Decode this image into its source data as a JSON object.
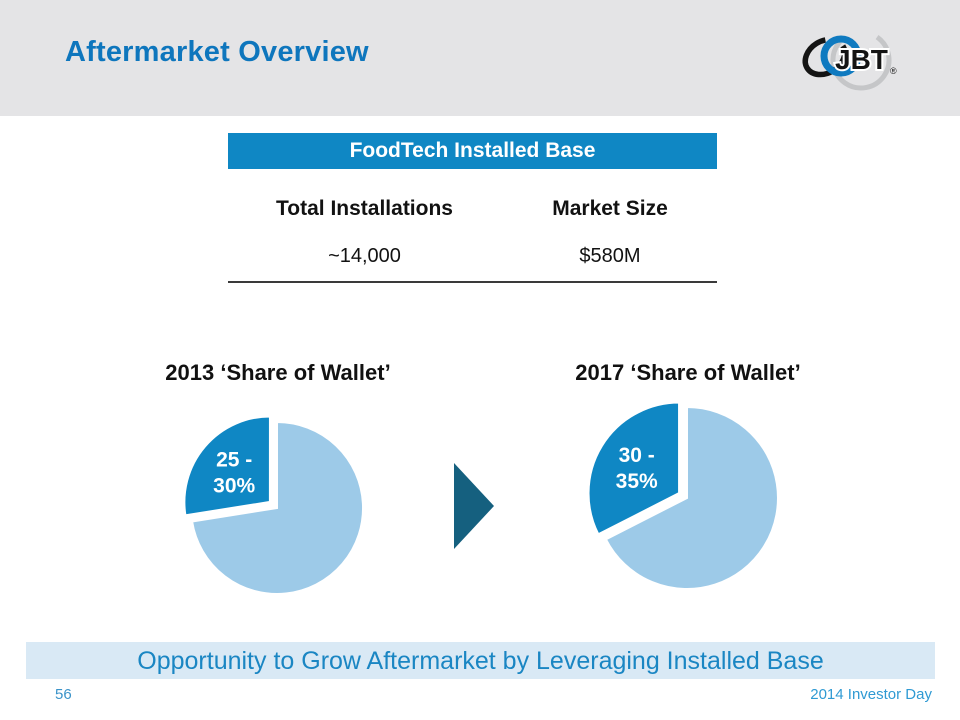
{
  "header": {
    "title": "Aftermarket Overview",
    "logo_text": "JBT",
    "logo_reg_mark": "®"
  },
  "table": {
    "title": "FoodTech Installed Base",
    "columns": [
      "Total Installations",
      "Market Size"
    ],
    "values": [
      "~14,000",
      "$580M"
    ]
  },
  "chart_data": [
    {
      "type": "pie",
      "title": "2013 ‘Share of Wallet’",
      "legend": "none",
      "slices": [
        {
          "label": "25 - 30%",
          "label_lines": [
            "25 -",
            "30%"
          ],
          "fraction": 0.275,
          "color": "#0f87c4",
          "exploded": true
        },
        {
          "label": "",
          "label_lines": [],
          "fraction": 0.725,
          "color": "#9dcae8",
          "exploded": false
        }
      ]
    },
    {
      "type": "pie",
      "title": "2017 ‘Share of Wallet’",
      "legend": "none",
      "slices": [
        {
          "label": "30 - 35%",
          "label_lines": [
            "30 -",
            "35%"
          ],
          "fraction": 0.325,
          "color": "#0f87c4",
          "exploded": true
        },
        {
          "label": "",
          "label_lines": [],
          "fraction": 0.675,
          "color": "#9dcae8",
          "exploded": false
        }
      ]
    }
  ],
  "banner": {
    "text": "Opportunity to Grow Aftermarket by Leveraging Installed Base"
  },
  "footer": {
    "page_number": "56",
    "event": "2014 Investor Day"
  },
  "colors": {
    "title_blue": "#0e76bd",
    "accent_blue": "#0f87c4",
    "light_blue": "#9dcae8",
    "arrow_blue": "#15607f",
    "banner_bg": "#d9e9f5",
    "banner_text": "#1a86c3",
    "header_band": "#e4e4e6",
    "footer_blue": "#2f9ad3"
  }
}
